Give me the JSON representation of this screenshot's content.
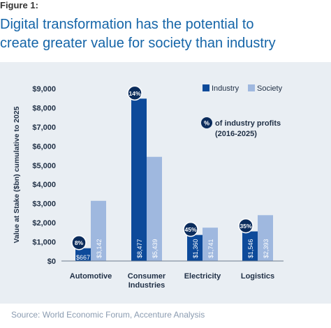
{
  "figure": {
    "label": "Figure 1:",
    "title_line1": "Digital transformation has the potential to",
    "title_line2": "create greater value for society than industry",
    "source": "Source: World Economic Forum, Accenture Analysis"
  },
  "chart_data": {
    "type": "bar",
    "title": "Digital transformation has the potential to create greater value for society than industry",
    "ylabel": "Value at Stake ($bn) cumulative to 2025",
    "ylim": [
      0,
      9000
    ],
    "yticks": [
      "$0",
      "$1,000",
      "$2,000",
      "$3,000",
      "$4,000",
      "$5,000",
      "$6,000",
      "$7,000",
      "$8,000",
      "$9,000"
    ],
    "categories": [
      "Automotive",
      "Consumer Industries",
      "Electricity",
      "Logistics"
    ],
    "category_lines": [
      [
        "Automotive"
      ],
      [
        "Consumer",
        "Industries"
      ],
      [
        "Electricity"
      ],
      [
        "Logistics"
      ]
    ],
    "series": [
      {
        "name": "Industry",
        "color": "#0d4a9a",
        "values": [
          667,
          8477,
          1360,
          1546
        ],
        "labels": [
          "$667",
          "$8,477",
          "$1,360",
          "$1,546"
        ]
      },
      {
        "name": "Society",
        "color": "#9fb8df",
        "values": [
          3142,
          5439,
          1741,
          2393
        ],
        "labels": [
          "$3,142",
          "$5,439",
          "$1,741",
          "$2,393"
        ]
      }
    ],
    "profit_share_labels": [
      "8%",
      "14%",
      "45%",
      "35%"
    ],
    "badge_legend": {
      "symbol": "%",
      "line1": "of industry profits",
      "line2": "(2016-2025)"
    },
    "legend_position": "top-right",
    "grid": false
  }
}
